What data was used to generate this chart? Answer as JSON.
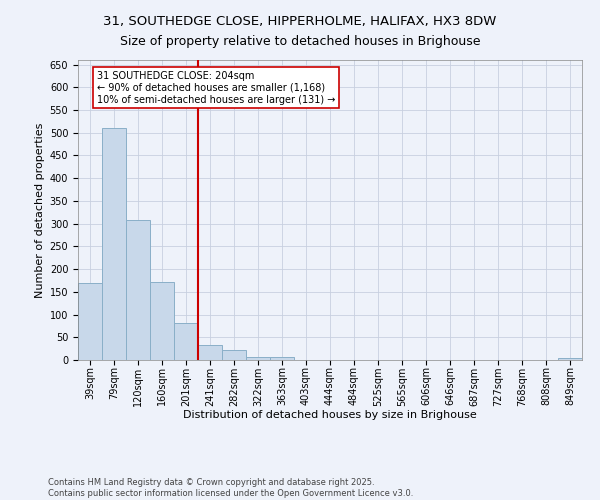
{
  "title_line1": "31, SOUTHEDGE CLOSE, HIPPERHOLME, HALIFAX, HX3 8DW",
  "title_line2": "Size of property relative to detached houses in Brighouse",
  "xlabel": "Distribution of detached houses by size in Brighouse",
  "ylabel": "Number of detached properties",
  "bar_color": "#c8d8ea",
  "bar_edge_color": "#8aafc8",
  "vline_color": "#cc0000",
  "vline_x": 4.5,
  "annotation_text": "31 SOUTHEDGE CLOSE: 204sqm\n← 90% of detached houses are smaller (1,168)\n10% of semi-detached houses are larger (131) →",
  "annotation_box_color": "#cc0000",
  "bins": [
    "39sqm",
    "79sqm",
    "120sqm",
    "160sqm",
    "201sqm",
    "241sqm",
    "282sqm",
    "322sqm",
    "363sqm",
    "403sqm",
    "444sqm",
    "484sqm",
    "525sqm",
    "565sqm",
    "606sqm",
    "646sqm",
    "687sqm",
    "727sqm",
    "768sqm",
    "808sqm",
    "849sqm"
  ],
  "values": [
    170,
    510,
    308,
    172,
    82,
    34,
    21,
    7,
    7,
    0,
    0,
    0,
    0,
    0,
    0,
    0,
    0,
    0,
    0,
    0,
    5
  ],
  "ylim": [
    0,
    660
  ],
  "yticks": [
    0,
    50,
    100,
    150,
    200,
    250,
    300,
    350,
    400,
    450,
    500,
    550,
    600,
    650
  ],
  "grid_color": "#c8d0e0",
  "background_color": "#eef2fa",
  "footer_line1": "Contains HM Land Registry data © Crown copyright and database right 2025.",
  "footer_line2": "Contains public sector information licensed under the Open Government Licence v3.0.",
  "title_fontsize": 9.5,
  "axis_label_fontsize": 8,
  "tick_fontsize": 7,
  "annotation_fontsize": 7,
  "footer_fontsize": 6
}
